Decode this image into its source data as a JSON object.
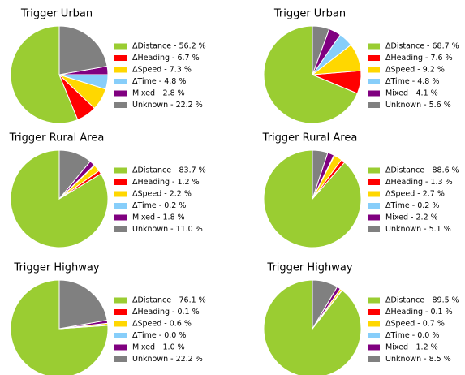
{
  "chart_data": [
    {
      "type": "pie",
      "title": "Trigger Urban",
      "values": [
        56.2,
        6.7,
        7.3,
        4.8,
        2.8,
        22.2
      ],
      "value_labels": [
        "ΔDistance - 56.2 %",
        "ΔHeading - 6.7 %",
        "ΔSpeed - 7.3 %",
        "ΔTime - 4.8 %",
        "Mixed - 2.8 %",
        "Unknown - 22.2 %"
      ],
      "colors": [
        "#9acd32",
        "#ff0000",
        "#ffd700",
        "#87cefa",
        "#800080",
        "#808080"
      ]
    },
    {
      "type": "pie",
      "title": "Trigger Urban",
      "values": [
        68.7,
        7.6,
        9.2,
        4.8,
        4.1,
        5.6
      ],
      "value_labels": [
        "ΔDistance - 68.7 %",
        "ΔHeading - 7.6 %",
        "ΔSpeed - 9.2 %",
        "ΔTime - 4.8 %",
        "Mixed - 4.1 %",
        "Unknown - 5.6 %"
      ],
      "colors": [
        "#9acd32",
        "#ff0000",
        "#ffd700",
        "#87cefa",
        "#800080",
        "#808080"
      ]
    },
    {
      "type": "pie",
      "title": "Trigger Rural Area",
      "values": [
        83.7,
        1.2,
        2.2,
        0.2,
        1.8,
        11.0
      ],
      "value_labels": [
        "ΔDistance - 83.7 %",
        "ΔHeading - 1.2 %",
        "ΔSpeed - 2.2 %",
        "ΔTime - 0.2 %",
        "Mixed - 1.8 %",
        "Unknown - 11.0 %"
      ],
      "colors": [
        "#9acd32",
        "#ff0000",
        "#ffd700",
        "#87cefa",
        "#800080",
        "#808080"
      ]
    },
    {
      "type": "pie",
      "title": "Trigger Rural Area",
      "values": [
        88.6,
        1.3,
        2.7,
        0.2,
        2.2,
        5.1
      ],
      "value_labels": [
        "ΔDistance - 88.6 %",
        "ΔHeading - 1.3 %",
        "ΔSpeed - 2.7 %",
        "ΔTime - 0.2 %",
        "Mixed - 2.2 %",
        "Unknown - 5.1 %"
      ],
      "colors": [
        "#9acd32",
        "#ff0000",
        "#ffd700",
        "#87cefa",
        "#800080",
        "#808080"
      ]
    },
    {
      "type": "pie",
      "title": "Trigger Highway",
      "values": [
        76.1,
        0.1,
        0.6,
        0.0,
        1.0,
        22.2
      ],
      "value_labels": [
        "ΔDistance - 76.1 %",
        "ΔHeading - 0.1 %",
        "ΔSpeed - 0.6 %",
        "ΔTime - 0.0 %",
        "Mixed - 1.0 %",
        "Unknown - 22.2 %"
      ],
      "colors": [
        "#9acd32",
        "#ff0000",
        "#ffd700",
        "#87cefa",
        "#800080",
        "#808080"
      ]
    },
    {
      "type": "pie",
      "title": "Trigger Highway",
      "values": [
        89.5,
        0.1,
        0.7,
        0.0,
        1.2,
        8.5
      ],
      "value_labels": [
        "ΔDistance - 89.5 %",
        "ΔHeading - 0.1 %",
        "ΔSpeed - 0.7 %",
        "ΔTime - 0.0 %",
        "Mixed - 1.2 %",
        "Unknown - 8.5 %"
      ],
      "colors": [
        "#9acd32",
        "#ff0000",
        "#ffd700",
        "#87cefa",
        "#800080",
        "#808080"
      ]
    }
  ]
}
